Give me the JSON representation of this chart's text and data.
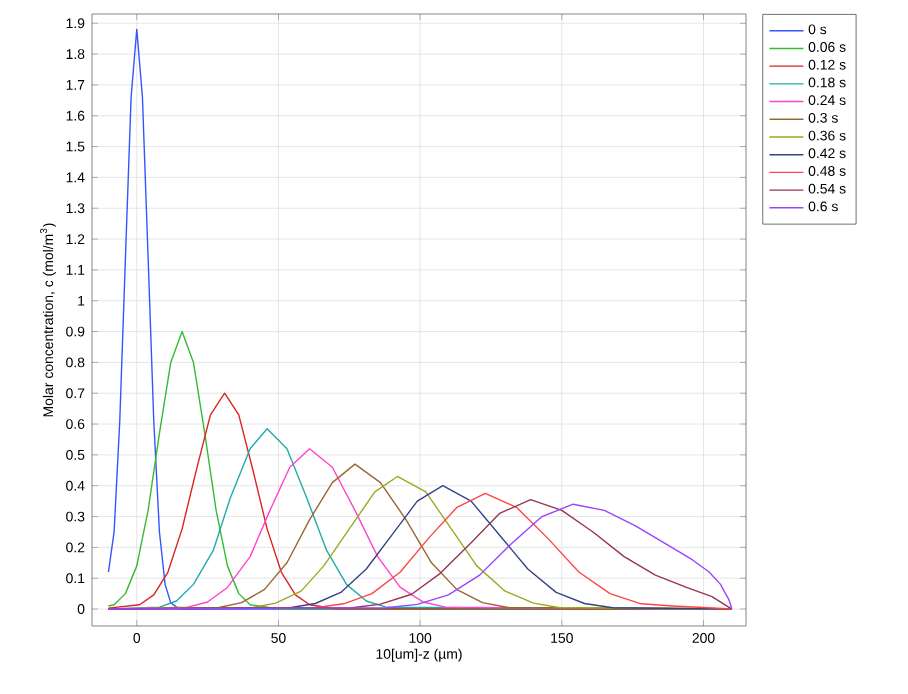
{
  "chart_data": {
    "type": "line",
    "xlabel": "10[um]-z (µm)",
    "ylabel": "Molar concentration, c (mol/m$^{3}$)",
    "xlim": [
      -15.8,
      215
    ],
    "ylim": [
      -0.055,
      1.93
    ],
    "xticks": [
      0,
      50,
      100,
      150,
      200
    ],
    "yticks": [
      0,
      0.1,
      0.2,
      0.3,
      0.4,
      0.5,
      0.6,
      0.7,
      0.8,
      0.9,
      1,
      1.1,
      1.2,
      1.3,
      1.4,
      1.5,
      1.6,
      1.7,
      1.8,
      1.9
    ],
    "grid": true,
    "legend": "top right",
    "marker": "none",
    "line_style": "solid",
    "series": [
      {
        "name": "0 s",
        "color": "#3355ff",
        "x": [
          -10,
          -8,
          -6,
          -4,
          -2,
          0,
          2,
          4,
          6,
          8,
          10,
          12,
          15,
          30,
          210
        ],
        "values": [
          0.12,
          0.25,
          0.61,
          1.14,
          1.66,
          1.88,
          1.66,
          1.14,
          0.61,
          0.25,
          0.08,
          0.02,
          0,
          0,
          0
        ]
      },
      {
        "name": "0.06 s",
        "color": "#33bb33",
        "x": [
          -10,
          -8,
          -4,
          0,
          4,
          8,
          12,
          16,
          20,
          24,
          28,
          32,
          36,
          40,
          50,
          210
        ],
        "values": [
          0.01,
          0.014,
          0.05,
          0.14,
          0.32,
          0.57,
          0.8,
          0.9,
          0.8,
          0.57,
          0.32,
          0.14,
          0.05,
          0.014,
          0,
          0
        ]
      },
      {
        "name": "0.12 s",
        "color": "#dd2222",
        "x": [
          -10,
          1,
          6,
          11,
          16,
          21,
          26,
          31,
          36,
          41,
          46,
          51,
          56,
          61,
          70,
          210
        ],
        "values": [
          0.003,
          0.014,
          0.046,
          0.12,
          0.26,
          0.45,
          0.63,
          0.7,
          0.63,
          0.45,
          0.26,
          0.12,
          0.046,
          0.014,
          0.001,
          0
        ]
      },
      {
        "name": "0.18 s",
        "color": "#22aaaa",
        "x": [
          -10,
          8,
          14,
          20,
          27,
          33,
          40,
          46,
          53,
          60,
          67,
          74,
          81,
          88,
          210
        ],
        "values": [
          0,
          0.006,
          0.026,
          0.08,
          0.19,
          0.36,
          0.52,
          0.585,
          0.52,
          0.36,
          0.19,
          0.08,
          0.026,
          0.006,
          0
        ]
      },
      {
        "name": "0.24 s",
        "color": "#ff44cc",
        "x": [
          -10,
          18,
          25,
          32,
          40,
          47,
          54,
          61,
          69,
          77,
          85,
          93,
          101,
          109,
          210
        ],
        "values": [
          0,
          0.006,
          0.023,
          0.07,
          0.17,
          0.32,
          0.46,
          0.52,
          0.46,
          0.32,
          0.17,
          0.07,
          0.023,
          0.006,
          0
        ]
      },
      {
        "name": "0.3 s",
        "color": "#996633",
        "x": [
          -10,
          29,
          37,
          45,
          53,
          61,
          69,
          77,
          86,
          95,
          104,
          113,
          122,
          131,
          210
        ],
        "values": [
          0,
          0.005,
          0.021,
          0.063,
          0.15,
          0.29,
          0.41,
          0.47,
          0.41,
          0.29,
          0.15,
          0.063,
          0.021,
          0.005,
          0
        ]
      },
      {
        "name": "0.36 s",
        "color": "#99aa22",
        "x": [
          -10,
          41,
          49,
          58,
          66,
          75,
          84,
          92,
          102,
          111,
          120,
          130,
          140,
          149,
          210
        ],
        "values": [
          0,
          0.005,
          0.019,
          0.058,
          0.14,
          0.26,
          0.38,
          0.43,
          0.38,
          0.26,
          0.14,
          0.058,
          0.019,
          0.005,
          0
        ]
      },
      {
        "name": "0.42 s",
        "color": "#334488",
        "x": [
          -10,
          54,
          63,
          72,
          81,
          90,
          99,
          108,
          118,
          128,
          138,
          148,
          158,
          168,
          210
        ],
        "values": [
          0,
          0.004,
          0.018,
          0.054,
          0.13,
          0.24,
          0.35,
          0.4,
          0.35,
          0.24,
          0.13,
          0.054,
          0.018,
          0.004,
          0
        ]
      },
      {
        "name": "0.48 s",
        "color": "#ff4444",
        "x": [
          -10,
          63,
          73,
          83,
          93,
          103,
          113,
          123,
          134,
          145,
          156,
          167,
          178,
          189,
          200,
          210
        ],
        "values": [
          0,
          0.004,
          0.017,
          0.05,
          0.12,
          0.23,
          0.33,
          0.375,
          0.33,
          0.23,
          0.12,
          0.05,
          0.017,
          0.01,
          0.005,
          0
        ]
      },
      {
        "name": "0.54 s",
        "color": "#993355",
        "x": [
          -10,
          76,
          86,
          97,
          107,
          118,
          128,
          139,
          150,
          161,
          172,
          183,
          194,
          203,
          210
        ],
        "values": [
          0,
          0.004,
          0.016,
          0.048,
          0.115,
          0.215,
          0.31,
          0.355,
          0.32,
          0.25,
          0.17,
          0.11,
          0.07,
          0.04,
          0
        ]
      },
      {
        "name": "0.6 s",
        "color": "#9944ff",
        "x": [
          -10,
          88,
          99,
          110,
          121,
          132,
          143,
          154,
          165,
          176,
          187,
          196,
          202,
          206,
          209,
          210
        ],
        "values": [
          0,
          0.004,
          0.015,
          0.046,
          0.11,
          0.21,
          0.3,
          0.34,
          0.32,
          0.27,
          0.21,
          0.16,
          0.12,
          0.08,
          0.03,
          0
        ]
      }
    ]
  }
}
